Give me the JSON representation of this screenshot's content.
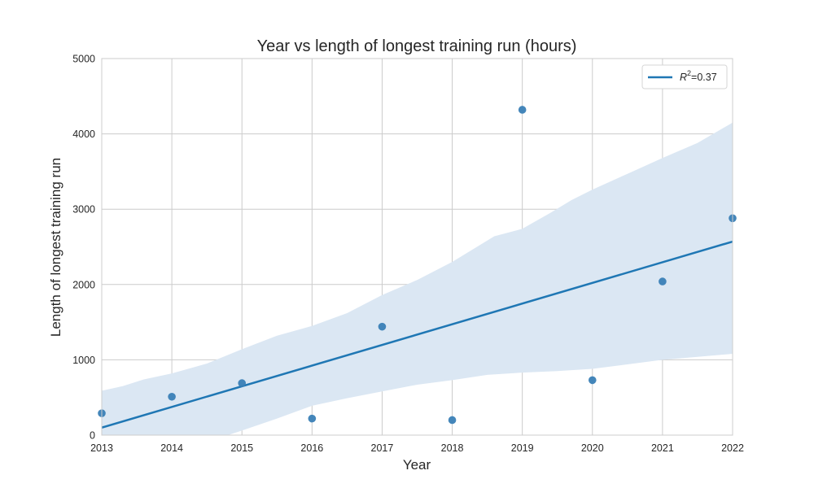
{
  "chart_data": {
    "type": "scatter",
    "title": "Year vs length of longest training run (hours)",
    "xlabel": "Year",
    "ylabel": "Length of longest training run",
    "xlim": [
      2013,
      2022
    ],
    "ylim": [
      0,
      5000
    ],
    "x_ticks": [
      2013,
      2014,
      2015,
      2016,
      2017,
      2018,
      2019,
      2020,
      2021,
      2022
    ],
    "y_ticks": [
      0,
      1000,
      2000,
      3000,
      4000,
      5000
    ],
    "grid": true,
    "legend_position": "top-right",
    "colors": {
      "points": "#3a80b6",
      "line": "#1f77b4",
      "band": "#dbe7f3",
      "grid": "#cccccc"
    },
    "points": [
      {
        "x": 2013,
        "y": 290
      },
      {
        "x": 2014,
        "y": 510
      },
      {
        "x": 2015,
        "y": 690
      },
      {
        "x": 2016,
        "y": 220
      },
      {
        "x": 2017,
        "y": 1440
      },
      {
        "x": 2018,
        "y": 200
      },
      {
        "x": 2019,
        "y": 4320
      },
      {
        "x": 2020,
        "y": 730
      },
      {
        "x": 2021,
        "y": 2040
      },
      {
        "x": 2022,
        "y": 2880
      }
    ],
    "regression": {
      "label_prefix": "R",
      "label_superscript": "2",
      "label_suffix": "=0.37",
      "line": [
        {
          "x": 2013,
          "y": 100
        },
        {
          "x": 2022,
          "y": 2570
        }
      ],
      "ci_upper": [
        {
          "x": 2013,
          "y": 590
        },
        {
          "x": 2013.3,
          "y": 650
        },
        {
          "x": 2013.6,
          "y": 740
        },
        {
          "x": 2014,
          "y": 820
        },
        {
          "x": 2014.5,
          "y": 950
        },
        {
          "x": 2015,
          "y": 1140
        },
        {
          "x": 2015.5,
          "y": 1320
        },
        {
          "x": 2016,
          "y": 1450
        },
        {
          "x": 2016.5,
          "y": 1620
        },
        {
          "x": 2017,
          "y": 1860
        },
        {
          "x": 2017.5,
          "y": 2060
        },
        {
          "x": 2018,
          "y": 2300
        },
        {
          "x": 2018.6,
          "y": 2640
        },
        {
          "x": 2019,
          "y": 2740
        },
        {
          "x": 2019.4,
          "y": 2950
        },
        {
          "x": 2019.7,
          "y": 3120
        },
        {
          "x": 2020,
          "y": 3260
        },
        {
          "x": 2020.5,
          "y": 3470
        },
        {
          "x": 2021,
          "y": 3680
        },
        {
          "x": 2021.5,
          "y": 3880
        },
        {
          "x": 2022,
          "y": 4150
        }
      ],
      "ci_lower": [
        {
          "x": 2022,
          "y": 1080
        },
        {
          "x": 2021.5,
          "y": 1040
        },
        {
          "x": 2021,
          "y": 1000
        },
        {
          "x": 2020.5,
          "y": 940
        },
        {
          "x": 2020,
          "y": 880
        },
        {
          "x": 2019.5,
          "y": 850
        },
        {
          "x": 2019,
          "y": 830
        },
        {
          "x": 2018.5,
          "y": 800
        },
        {
          "x": 2018,
          "y": 730
        },
        {
          "x": 2017.5,
          "y": 670
        },
        {
          "x": 2017,
          "y": 580
        },
        {
          "x": 2016.5,
          "y": 490
        },
        {
          "x": 2016,
          "y": 390
        },
        {
          "x": 2015.5,
          "y": 220
        },
        {
          "x": 2015,
          "y": 60
        },
        {
          "x": 2014.8,
          "y": 0
        },
        {
          "x": 2013,
          "y": 0
        }
      ]
    }
  }
}
